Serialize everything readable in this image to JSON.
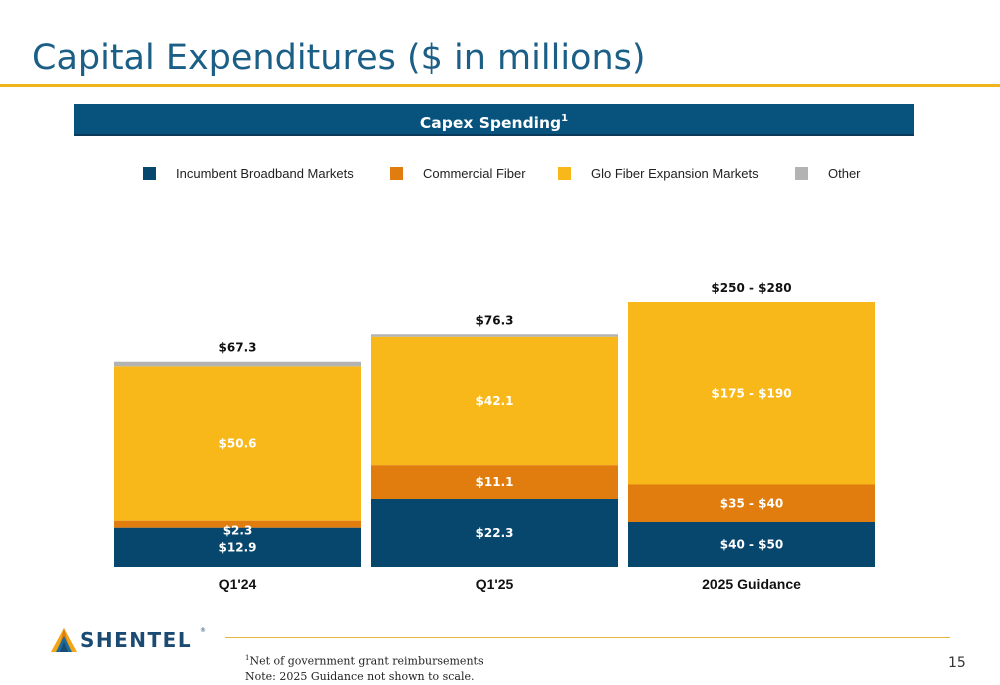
{
  "slide": {
    "title": "Capital Expenditures ($ in millions)",
    "page_number": "15"
  },
  "chart_header": {
    "label": "Capex Spending",
    "superscript": "1"
  },
  "legend": [
    {
      "label": "Incumbent Broadband Markets",
      "color": "#07466d"
    },
    {
      "label": "Commercial Fiber",
      "color": "#e07d0e"
    },
    {
      "label": "Glo Fiber Expansion Markets",
      "color": "#f9b81a"
    },
    {
      "label": "Other",
      "color": "#b3b3b3"
    }
  ],
  "chart_data": {
    "type": "bar",
    "stacked": true,
    "categories": [
      "Q1'24",
      "Q1'25",
      "2025 Guidance"
    ],
    "totals": [
      "$67.3",
      "$76.3",
      "$250 - $280"
    ],
    "series": [
      {
        "name": "Incumbent Broadband Markets",
        "color": "#07466d",
        "values": [
          12.9,
          22.3,
          45
        ],
        "labels": [
          "$12.9",
          "$22.3",
          "$40 - $50"
        ]
      },
      {
        "name": "Commercial Fiber",
        "color": "#e07d0e",
        "values": [
          2.3,
          11.1,
          37.5
        ],
        "labels": [
          "$2.3",
          "$11.1",
          "$35 - $40"
        ]
      },
      {
        "name": "Glo Fiber Expansion Markets",
        "color": "#f9b81a",
        "values": [
          50.6,
          42.1,
          182.5
        ],
        "labels": [
          "$50.6",
          "$42.1",
          "$175 - $190"
        ]
      },
      {
        "name": "Other",
        "color": "#b3b3b3",
        "values": [
          1.5,
          0.8,
          0
        ],
        "labels": [
          "",
          "",
          ""
        ]
      }
    ]
  },
  "footer": {
    "logo_text": "SHENTEL",
    "logo_mark": "®",
    "footnote_marker": "1",
    "footnote_1": "Net of government grant reimbursements",
    "note": "Note: 2025 Guidance not shown to scale."
  }
}
